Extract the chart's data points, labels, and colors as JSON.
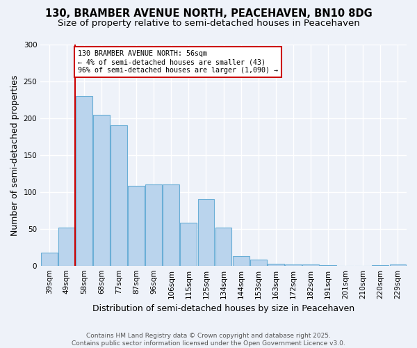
{
  "title": "130, BRAMBER AVENUE NORTH, PEACEHAVEN, BN10 8DG",
  "subtitle": "Size of property relative to semi-detached houses in Peacehaven",
  "xlabel": "Distribution of semi-detached houses by size in Peacehaven",
  "ylabel": "Number of semi-detached properties",
  "categories": [
    "39sqm",
    "49sqm",
    "58sqm",
    "68sqm",
    "77sqm",
    "87sqm",
    "96sqm",
    "106sqm",
    "115sqm",
    "125sqm",
    "134sqm",
    "144sqm",
    "153sqm",
    "163sqm",
    "172sqm",
    "182sqm",
    "191sqm",
    "201sqm",
    "210sqm",
    "220sqm",
    "229sqm"
  ],
  "values": [
    18,
    52,
    230,
    205,
    190,
    108,
    110,
    110,
    58,
    90,
    52,
    13,
    8,
    3,
    2,
    2,
    1,
    0,
    0,
    1,
    2
  ],
  "bar_color": "#bad4ed",
  "bar_edge_color": "#6aaed6",
  "vline_x_index": 2,
  "annotation_text": "130 BRAMBER AVENUE NORTH: 56sqm\n← 4% of semi-detached houses are smaller (43)\n96% of semi-detached houses are larger (1,090) →",
  "annotation_box_color": "#ffffff",
  "annotation_box_edge": "#cc0000",
  "vline_color": "#cc0000",
  "ylim": [
    0,
    300
  ],
  "yticks": [
    0,
    50,
    100,
    150,
    200,
    250,
    300
  ],
  "footer": "Contains HM Land Registry data © Crown copyright and database right 2025.\nContains public sector information licensed under the Open Government Licence v3.0.",
  "bg_color": "#eef2f9",
  "plot_bg_color": "#eef2f9",
  "grid_color": "#ffffff",
  "title_fontsize": 10.5,
  "subtitle_fontsize": 9.5,
  "axis_label_fontsize": 9,
  "tick_fontsize": 7.5,
  "footer_fontsize": 6.5
}
